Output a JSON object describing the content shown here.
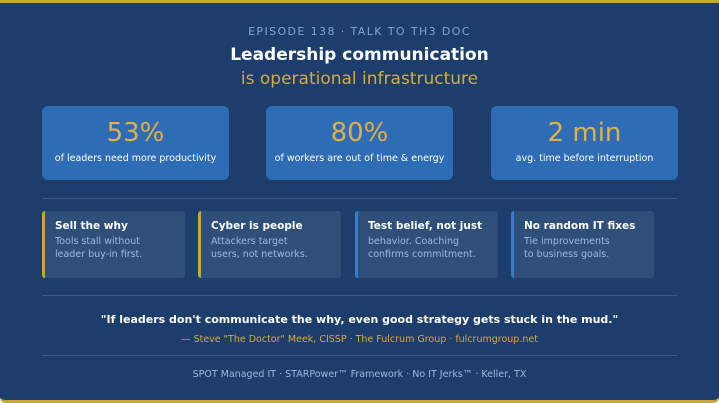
{
  "episode": "EPISODE 138 · TALK TO TH3 DOC",
  "title": "Leadership communication",
  "subtitle": "is operational infrastructure",
  "stats": [
    {
      "value": "53%",
      "label": "of leaders need more productivity"
    },
    {
      "value": "80%",
      "label": "of workers are out of time & energy"
    },
    {
      "value": "2 min",
      "label": "avg. time before interruption"
    }
  ],
  "cards": [
    {
      "heading": "Sell the why",
      "line1": "Tools stall without",
      "line2": "leader buy-in first."
    },
    {
      "heading": "Cyber is people",
      "line1": "Attackers target",
      "line2": "users, not networks."
    },
    {
      "heading": "Test belief, not just",
      "line1": "behavior. Coaching",
      "line2": "confirms commitment."
    },
    {
      "heading": "No random IT fixes",
      "line1": "Tie improvements",
      "line2": "to business goals."
    }
  ],
  "quote": "\"If leaders don't communicate the why, even good strategy gets stuck in the mud.\"",
  "attribution": "— Steve \"The Doctor\" Meek, CISSP · The Fulcrum Group · fulcrumgroup.net",
  "footer": "SPOT Managed IT · STARPower™ Framework · No IT Jerks™ · Keller, TX",
  "colors": {
    "background": "#1d3e6c",
    "accent_gold": "#d6ab3d",
    "stat_box": "#2f6cb6",
    "card": "#2f4f7b"
  }
}
